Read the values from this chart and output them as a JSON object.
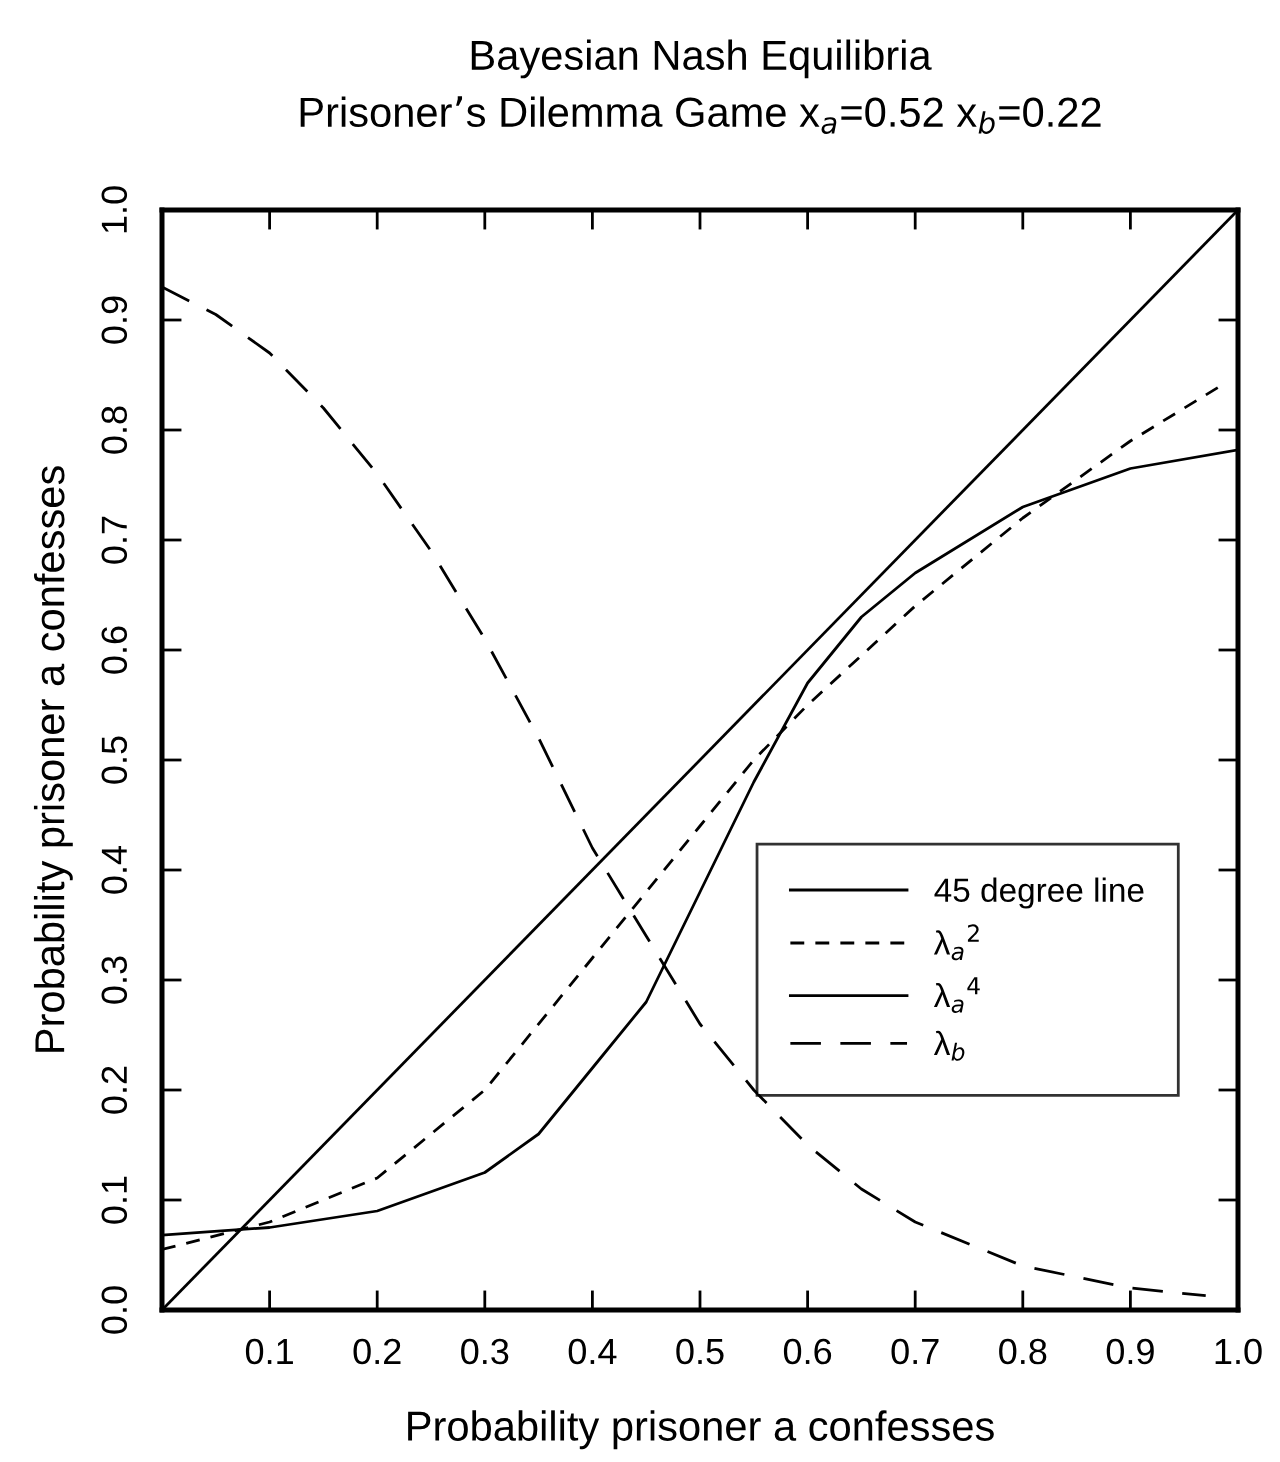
{
  "chart_data": {
    "type": "line",
    "title": "Bayesian Nash Equilibria\nPrisoner’s Dilemma Game x$_{a}$=0.52 x$_{b}$=0.22",
    "xlabel": "Probability prisoner a confesses",
    "ylabel": "Probability prisoner a confesses",
    "xlim": [
      0,
      1
    ],
    "ylim": [
      0,
      1
    ],
    "xticks": [
      {
        "value": 0,
        "label": null
      },
      0.1,
      0.2,
      0.3,
      0.4,
      0.5,
      0.6,
      0.7,
      0.8,
      0.9,
      {
        "value": 1,
        "label": "1.0"
      }
    ],
    "yticks": [
      {
        "value": 0,
        "label": "0.0"
      },
      0.1,
      0.2,
      0.3,
      0.4,
      0.5,
      0.6,
      0.7,
      0.8,
      0.9,
      {
        "value": 1,
        "label": "1.0"
      }
    ],
    "grid": false,
    "legend": "bottom right",
    "marker": "none",
    "series": [
      {
        "name": "45 degree line",
        "color": "#000000",
        "line_style": "solid",
        "x": [
          0,
          1
        ],
        "values": [
          0,
          1
        ]
      },
      {
        "name": "λ$_{a}$$^{2}$",
        "color": "#000000",
        "line_style": "dashed",
        "x": [
          0,
          0.1,
          0.2,
          0.3,
          0.4,
          0.45,
          0.5,
          0.55,
          0.6,
          0.7,
          0.8,
          0.9,
          0.987
        ],
        "values": [
          0.055,
          0.08,
          0.12,
          0.2,
          0.32,
          0.38,
          0.44,
          0.5,
          0.55,
          0.64,
          0.72,
          0.79,
          0.842
        ]
      },
      {
        "name": "λ$_{a}$$^{4}$",
        "color": "#000000",
        "line_style": "solid",
        "x": [
          0,
          0.1,
          0.2,
          0.3,
          0.35,
          0.4,
          0.45,
          0.5,
          0.55,
          0.6,
          0.65,
          0.7,
          0.8,
          0.9,
          1.0
        ],
        "values": [
          0.068,
          0.075,
          0.09,
          0.125,
          0.16,
          0.22,
          0.28,
          0.38,
          0.48,
          0.57,
          0.63,
          0.67,
          0.73,
          0.765,
          0.782
        ]
      },
      {
        "name": "λ$_{b}$",
        "color": "#000000",
        "line_style": "dashed",
        "x": [
          0,
          0.05,
          0.1,
          0.15,
          0.2,
          0.25,
          0.3,
          0.35,
          0.4,
          0.45,
          0.5,
          0.55,
          0.6,
          0.65,
          0.7,
          0.75,
          0.8,
          0.85,
          0.9,
          0.97
        ],
        "values": [
          0.93,
          0.905,
          0.87,
          0.82,
          0.76,
          0.69,
          0.61,
          0.52,
          0.42,
          0.34,
          0.26,
          0.2,
          0.15,
          0.11,
          0.08,
          0.06,
          0.04,
          0.03,
          0.02,
          0.013
        ]
      }
    ]
  }
}
